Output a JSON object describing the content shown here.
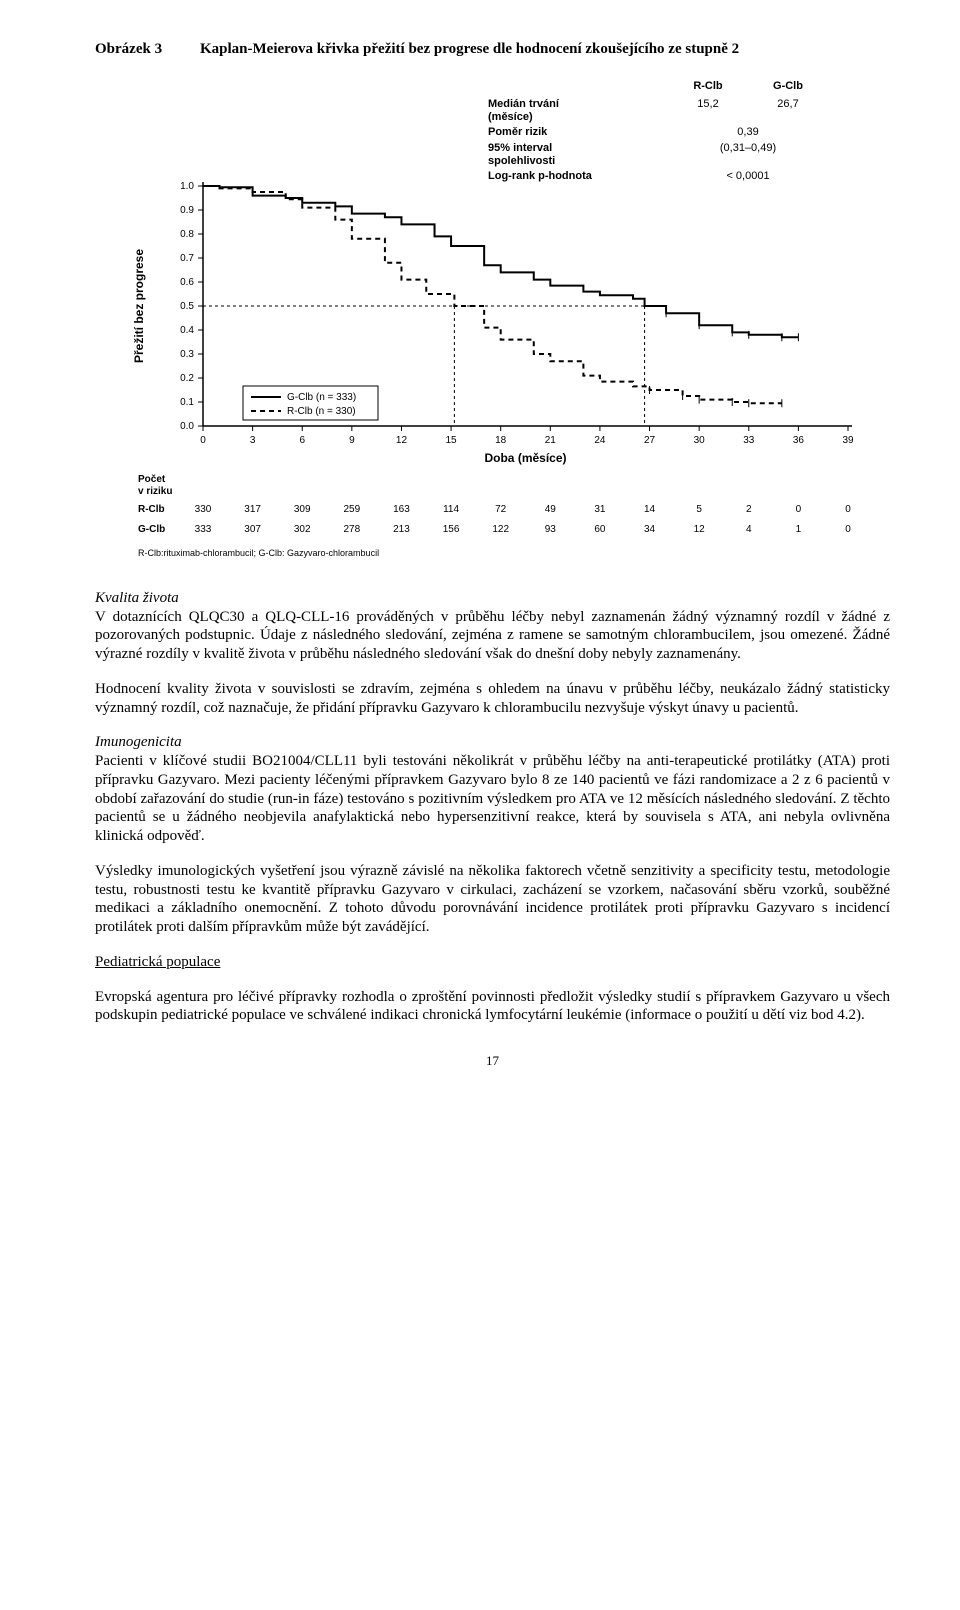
{
  "figure": {
    "label": "Obrázek 3",
    "title": "Kaplan-Meierova křivka přežití bez progrese dle hodnocení zkoušejícího ze stupně 2",
    "ylabel": "Přežití bez progrese",
    "xlabel": "Doba (měsíce)",
    "ylim": [
      0,
      1.0
    ],
    "xlim": [
      0,
      39
    ],
    "y_ticks": [
      0.0,
      0.1,
      0.2,
      0.3,
      0.4,
      0.5,
      0.6,
      0.7,
      0.8,
      0.9,
      1.0
    ],
    "x_ticks": [
      0,
      3,
      6,
      9,
      12,
      15,
      18,
      21,
      24,
      27,
      30,
      33,
      36,
      39
    ],
    "font_family": "Arial",
    "axis_fontsize": 11,
    "tick_fontsize": 10,
    "line_width": 2,
    "dash_pattern": "5,4",
    "median_ref_y": 0.5,
    "series": [
      {
        "name": "G-Clb",
        "legend": "G-Clb (n = 333)",
        "style": "solid",
        "color": "#000000",
        "median_x": 26.7,
        "x": [
          0,
          1,
          3,
          5,
          6,
          8,
          9,
          11,
          12,
          14,
          15,
          17,
          18,
          20,
          21,
          23,
          24,
          26,
          26.7,
          28,
          30,
          32,
          33,
          35,
          36
        ],
        "y": [
          1.0,
          0.995,
          0.96,
          0.95,
          0.93,
          0.915,
          0.885,
          0.87,
          0.84,
          0.79,
          0.75,
          0.67,
          0.64,
          0.61,
          0.585,
          0.56,
          0.545,
          0.53,
          0.5,
          0.47,
          0.42,
          0.39,
          0.38,
          0.37,
          0.37
        ]
      },
      {
        "name": "R-Clb",
        "legend": "R-Clb (n = 330)",
        "style": "dashed",
        "color": "#000000",
        "median_x": 15.2,
        "x": [
          0,
          1,
          3,
          5,
          6,
          8,
          9,
          11,
          12,
          13.5,
          15.2,
          17,
          18,
          20,
          21,
          23,
          24,
          26,
          27,
          29,
          30,
          32,
          33,
          35
        ],
        "y": [
          1.0,
          0.99,
          0.975,
          0.945,
          0.91,
          0.86,
          0.78,
          0.68,
          0.61,
          0.55,
          0.5,
          0.41,
          0.36,
          0.3,
          0.27,
          0.21,
          0.185,
          0.165,
          0.15,
          0.125,
          0.11,
          0.1,
          0.095,
          0.095
        ]
      }
    ],
    "stats": {
      "col_headers": [
        "R-Clb",
        "G-Clb"
      ],
      "rows": [
        {
          "label": "Medián trvání (měsíce)",
          "r": "15,2",
          "g": "26,7"
        },
        {
          "label": "Poměr rizik",
          "r": "",
          "g": "0,39",
          "center": true
        },
        {
          "label": "95% interval spolehlivosti",
          "r": "",
          "g": "(0,31–0,49)",
          "center": true
        },
        {
          "label": "Log-rank p-hodnota",
          "r": "",
          "g": "< 0,0001",
          "center": true
        }
      ]
    },
    "risk_table": {
      "title": "Počet v riziku",
      "rows": [
        {
          "label": "R-Clb",
          "values": [
            330,
            317,
            309,
            259,
            163,
            114,
            72,
            49,
            31,
            14,
            5,
            2,
            0,
            0
          ]
        },
        {
          "label": "G-Clb",
          "values": [
            333,
            307,
            302,
            278,
            213,
            156,
            122,
            93,
            60,
            34,
            12,
            4,
            1,
            0
          ]
        }
      ]
    },
    "footnote": "R-Clb:rituximab-chlorambucil;  G-Clb: Gazyvaro-chlorambucil"
  },
  "paragraphs": {
    "p1_heading": "Kvalita života",
    "p1": "V dotaznících QLQC30 a QLQ-CLL-16 prováděných v průběhu léčby nebyl zaznamenán žádný významný rozdíl v žádné z pozorovaných podstupnic. Údaje z následného sledování, zejména z ramene se samotným chlorambucilem, jsou omezené. Žádné výrazné rozdíly v kvalitě života v průběhu následného sledování však do dnešní doby nebyly zaznamenány.",
    "p2": "Hodnocení kvality života v souvislosti se zdravím, zejména s ohledem na únavu v průběhu léčby, neukázalo žádný statisticky významný rozdíl, což naznačuje, že přidání přípravku Gazyvaro k chlorambucilu nezvyšuje výskyt únavy u pacientů.",
    "p3_heading": "Imunogenicita",
    "p3": "Pacienti v klíčové studii BO21004/CLL11 byli testováni několikrát v průběhu léčby na anti-terapeutické protilátky (ATA) proti přípravku Gazyvaro. Mezi pacienty léčenými přípravkem Gazyvaro bylo 8 ze 140 pacientů ve fázi randomizace a 2 z 6 pacientů v období zařazování do studie (run-in fáze) testováno s pozitivním výsledkem pro ATA ve 12 měsících následného sledování. Z těchto pacientů se u žádného neobjevila anafylaktická nebo hypersenzitivní reakce, která by souvisela s ATA, ani nebyla ovlivněna klinická odpověď.",
    "p4": "Výsledky imunologických vyšetření jsou výrazně závislé na několika faktorech včetně senzitivity a specificity testu, metodologie testu, robustnosti testu ke kvantitě přípravku Gazyvaro v cirkulaci, zacházení se vzorkem, načasování sběru vzorků, souběžné medikaci a základního onemocnění. Z tohoto důvodu porovnávání incidence protilátek proti přípravku Gazyvaro s incidencí protilátek proti dalším přípravkům může být zavádějící.",
    "p5_heading": "Pediatrická populace",
    "p5": "Evropská agentura pro léčivé přípravky rozhodla o zproštění povinnosti předložit výsledky studií s přípravkem Gazyvaro u všech podskupin pediatrické populace ve schválené indikaci chronická lymfocytární leukémie (informace o použití u dětí viz bod 4.2)."
  },
  "page_number": "17",
  "colors": {
    "text": "#000000",
    "background": "#ffffff",
    "axis": "#000000"
  }
}
